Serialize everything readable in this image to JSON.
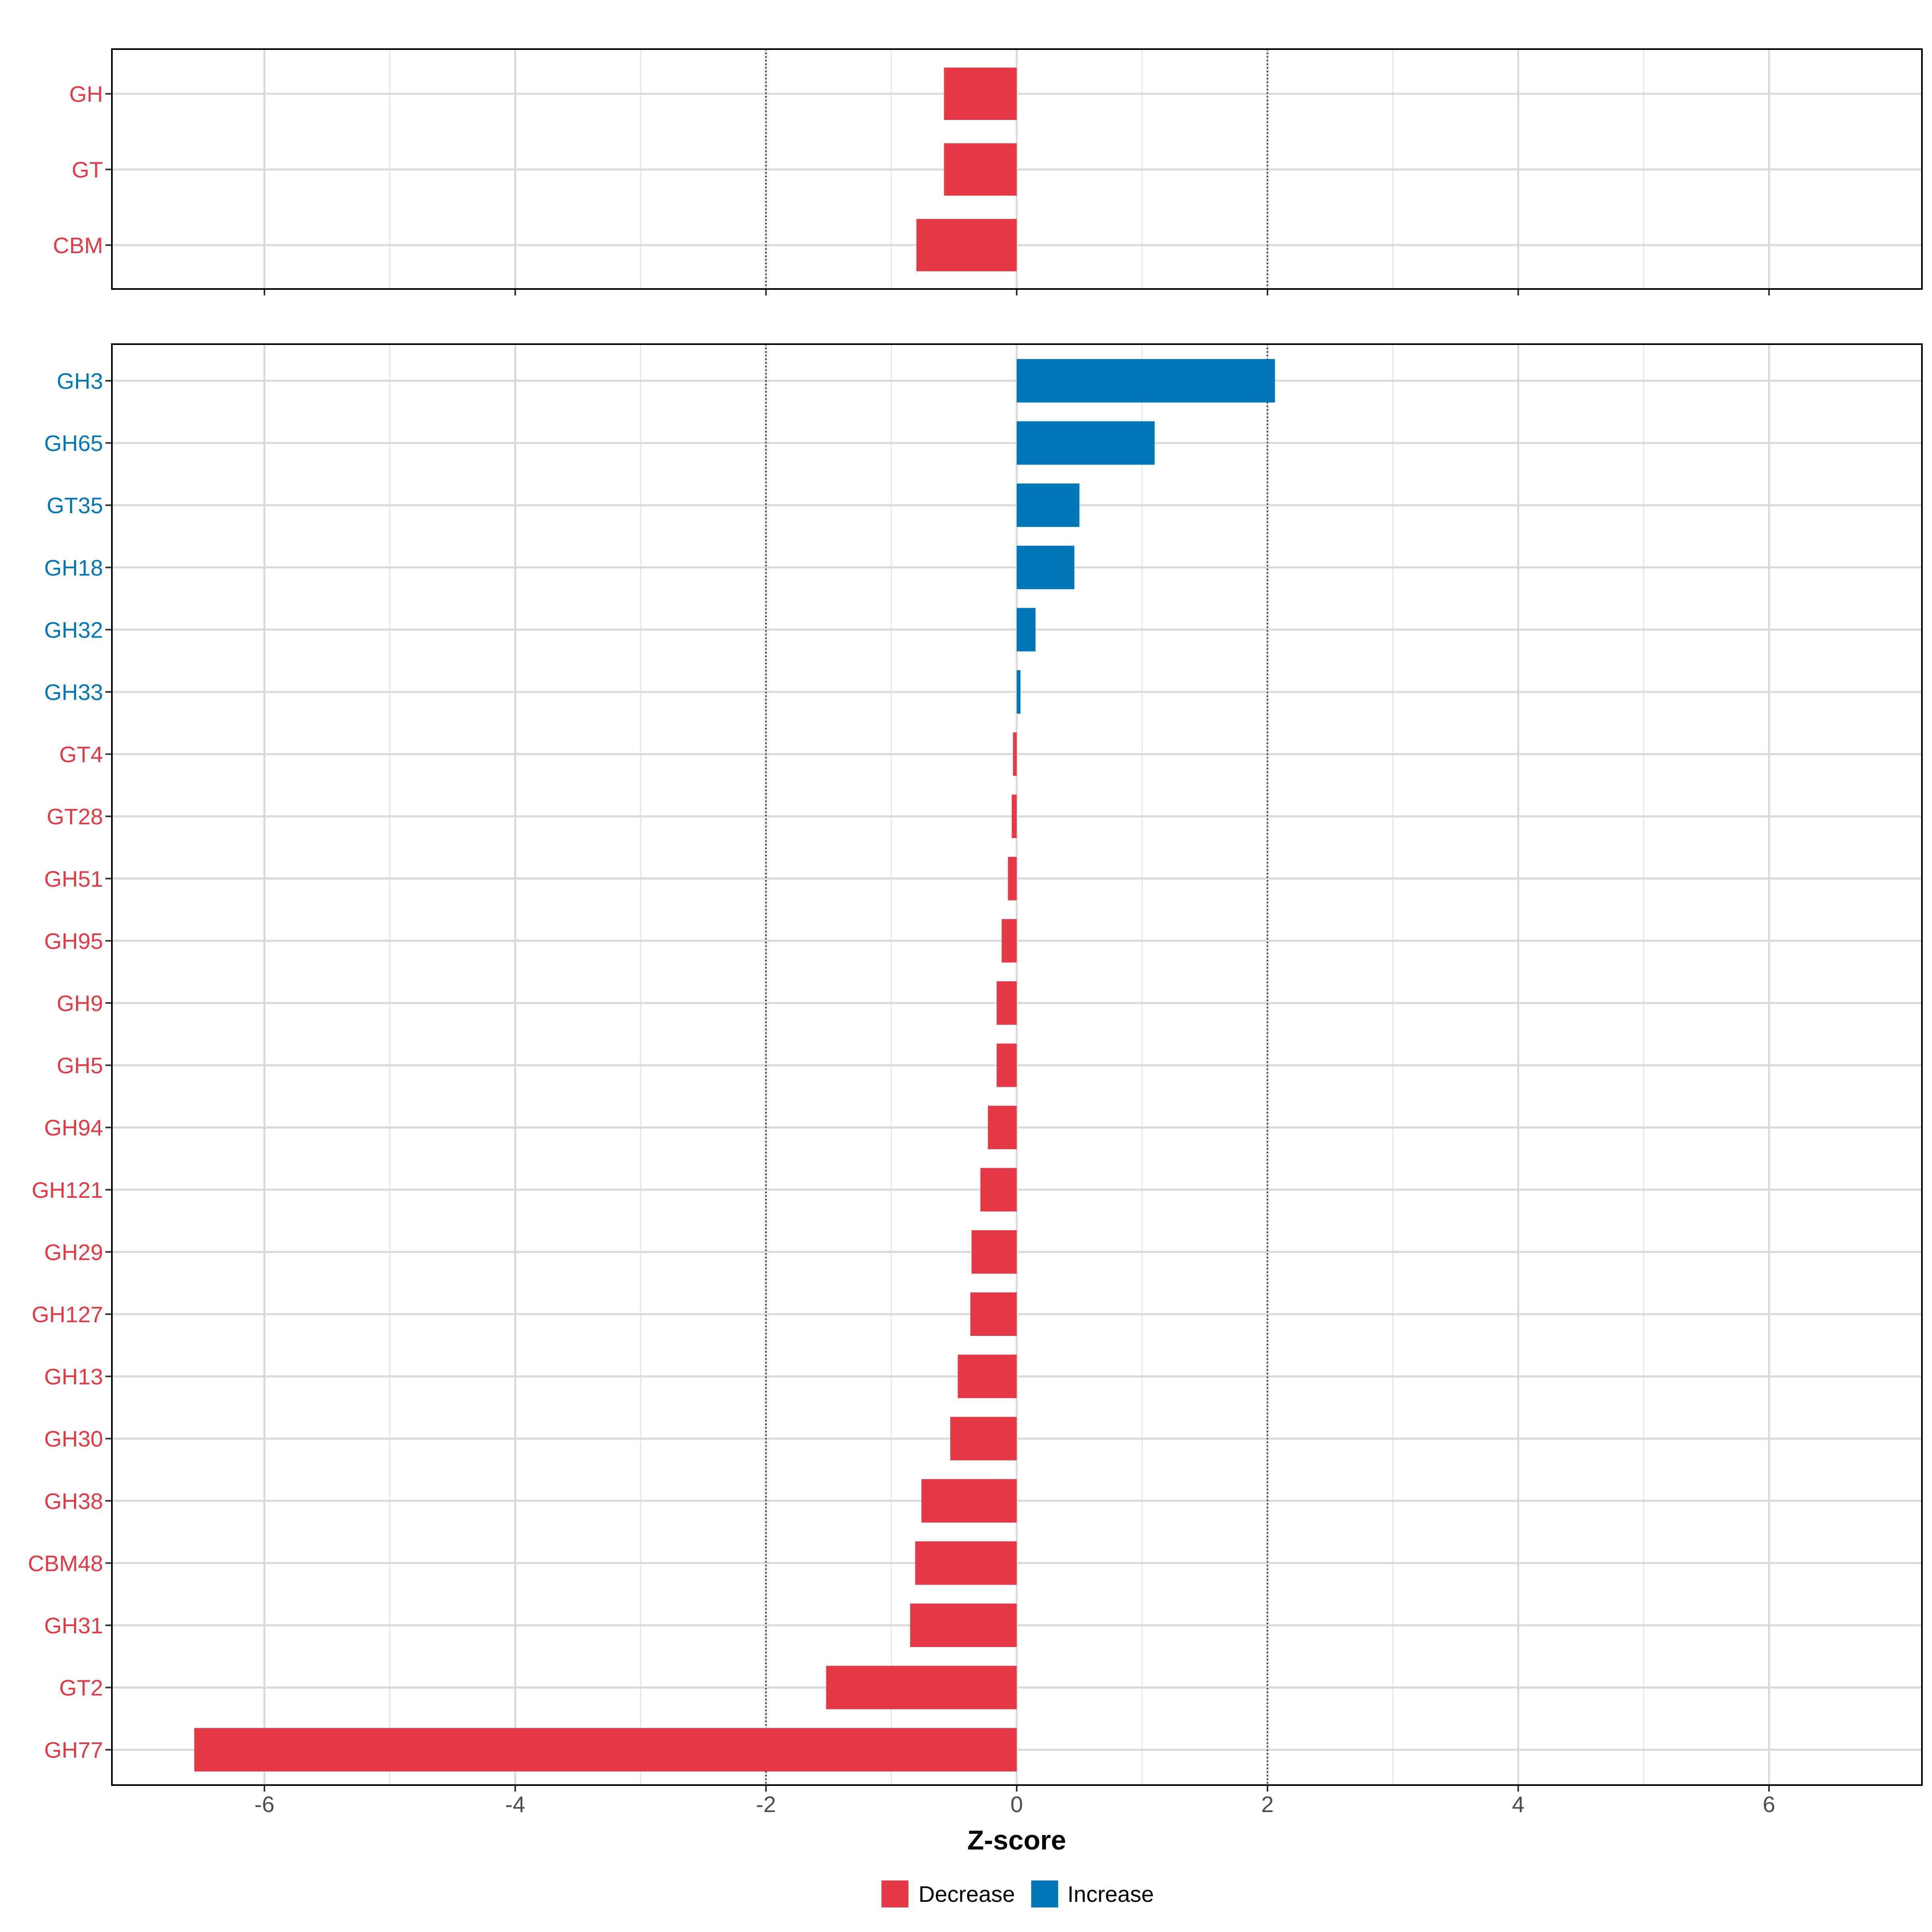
{
  "chart_data": {
    "type": "bar",
    "orientation": "horizontal",
    "xlabel": "Z-score",
    "xlim": [
      -7.2,
      7.2
    ],
    "xticks": [
      -6,
      -4,
      -2,
      0,
      2,
      4,
      6
    ],
    "xtick_labels": [
      "-6",
      "-4",
      "-2",
      "0",
      "2",
      "4",
      "6"
    ],
    "reference_lines": [
      -2,
      2
    ],
    "grid": true,
    "legend_position": "bottom",
    "colors": {
      "Decrease": "#E63946",
      "Increase": "#0077B6"
    },
    "legend": [
      {
        "label": "Decrease",
        "color": "#E63946"
      },
      {
        "label": "Increase",
        "color": "#0077B6"
      }
    ],
    "panels": [
      {
        "name": "top",
        "categories": [
          "GH",
          "GT",
          "CBM"
        ],
        "values": [
          -0.58,
          -0.58,
          -0.8
        ],
        "direction": [
          "Decrease",
          "Decrease",
          "Decrease"
        ]
      },
      {
        "name": "bottom",
        "categories": [
          "GH3",
          "GH65",
          "GT35",
          "GH18",
          "GH32",
          "GH33",
          "GT4",
          "GT28",
          "GH51",
          "GH95",
          "GH9",
          "GH5",
          "GH94",
          "GH121",
          "GH29",
          "GH127",
          "GH13",
          "GH30",
          "GH38",
          "CBM48",
          "GH31",
          "GT2",
          "GH77"
        ],
        "values": [
          2.06,
          1.1,
          0.5,
          0.46,
          0.15,
          0.03,
          -0.03,
          -0.04,
          -0.07,
          -0.12,
          -0.16,
          -0.16,
          -0.23,
          -0.29,
          -0.36,
          -0.37,
          -0.47,
          -0.53,
          -0.76,
          -0.81,
          -0.85,
          -1.52,
          -6.56
        ],
        "direction": [
          "Increase",
          "Increase",
          "Increase",
          "Increase",
          "Increase",
          "Increase",
          "Decrease",
          "Decrease",
          "Decrease",
          "Decrease",
          "Decrease",
          "Decrease",
          "Decrease",
          "Decrease",
          "Decrease",
          "Decrease",
          "Decrease",
          "Decrease",
          "Decrease",
          "Decrease",
          "Decrease",
          "Decrease",
          "Decrease"
        ]
      }
    ]
  }
}
